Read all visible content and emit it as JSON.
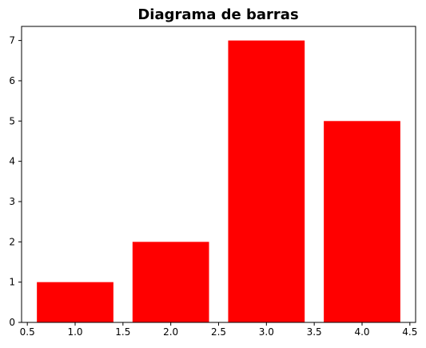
{
  "chart_data": {
    "type": "bar",
    "title": "Diagrama de barras",
    "xlabel": "",
    "ylabel": "",
    "x": [
      1,
      2,
      3,
      4
    ],
    "values": [
      1,
      2,
      7,
      5
    ],
    "bar_width": 0.8,
    "bar_color": "#ff0000",
    "xlim": [
      0.44,
      4.56
    ],
    "ylim": [
      0,
      7.35
    ],
    "xticks": [
      0.5,
      1.0,
      1.5,
      2.0,
      2.5,
      3.0,
      3.5,
      4.0,
      4.5
    ],
    "xtick_labels": [
      "0.5",
      "1.0",
      "1.5",
      "2.0",
      "2.5",
      "3.0",
      "3.5",
      "4.0",
      "4.5"
    ],
    "yticks": [
      0,
      1,
      2,
      3,
      4,
      5,
      6,
      7
    ],
    "ytick_labels": [
      "0",
      "1",
      "2",
      "3",
      "4",
      "5",
      "6",
      "7"
    ],
    "grid": false,
    "legend": "none"
  }
}
